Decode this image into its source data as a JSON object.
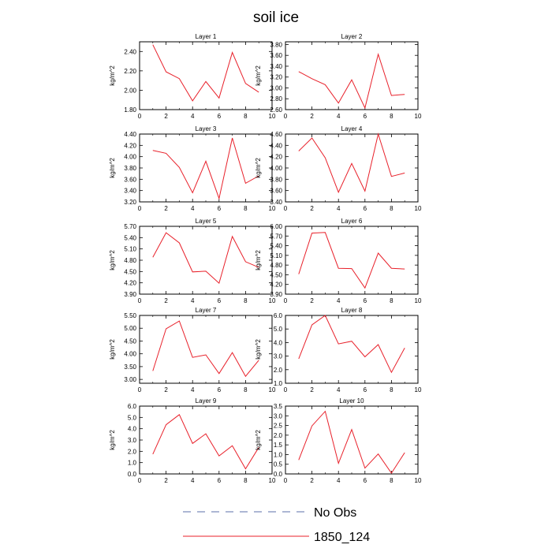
{
  "figure": {
    "title": "soil ice",
    "legend": {
      "position": "bottom-center",
      "entries": [
        {
          "label": "No Obs",
          "style": "dashed",
          "color": "#5b6fa8"
        },
        {
          "label": "1850_124",
          "style": "solid",
          "color": "#e8202a"
        }
      ]
    }
  },
  "chart_data": [
    {
      "type": "line",
      "title": "Layer 1",
      "ylabel": "kg/m^2",
      "xlim": [
        0,
        10
      ],
      "xticks": [
        0,
        2,
        4,
        6,
        8,
        10
      ],
      "ylim": [
        1.8,
        2.5
      ],
      "yticks": [
        "1.80",
        "2.00",
        "2.20",
        "2.40"
      ],
      "series": [
        {
          "name": "1850_124",
          "color": "#e8202a",
          "x": [
            1,
            2,
            3,
            4,
            5,
            6,
            7,
            8,
            9
          ],
          "y": [
            2.47,
            2.19,
            2.12,
            1.89,
            2.09,
            1.92,
            2.39,
            2.07,
            1.98
          ]
        }
      ]
    },
    {
      "type": "line",
      "title": "Layer 2",
      "ylabel": "kg/m^2",
      "xlim": [
        0,
        10
      ],
      "xticks": [
        0,
        2,
        4,
        6,
        8,
        10
      ],
      "ylim": [
        2.6,
        3.85
      ],
      "yticks": [
        "2.60",
        "2.80",
        "3.00",
        "3.20",
        "3.40",
        "3.60",
        "3.80"
      ],
      "series": [
        {
          "name": "1850_124",
          "color": "#e8202a",
          "x": [
            1,
            2,
            3,
            4,
            5,
            6,
            7,
            8,
            9
          ],
          "y": [
            3.3,
            3.17,
            3.06,
            2.72,
            3.15,
            2.63,
            3.62,
            2.86,
            2.88
          ]
        }
      ]
    },
    {
      "type": "line",
      "title": "Layer 3",
      "ylabel": "kg/m^2",
      "xlim": [
        0,
        10
      ],
      "xticks": [
        0,
        2,
        4,
        6,
        8,
        10
      ],
      "ylim": [
        3.2,
        4.4
      ],
      "yticks": [
        "3.20",
        "3.40",
        "3.60",
        "3.80",
        "4.00",
        "4.20",
        "4.40"
      ],
      "series": [
        {
          "name": "1850_124",
          "color": "#e8202a",
          "x": [
            1,
            2,
            3,
            4,
            5,
            6,
            7,
            8,
            9
          ],
          "y": [
            4.11,
            4.06,
            3.81,
            3.36,
            3.92,
            3.26,
            4.33,
            3.53,
            3.66
          ]
        }
      ]
    },
    {
      "type": "line",
      "title": "Layer 4",
      "ylabel": "kg/m^2",
      "xlim": [
        0,
        10
      ],
      "xticks": [
        0,
        2,
        4,
        6,
        8,
        10
      ],
      "ylim": [
        3.4,
        4.6
      ],
      "yticks": [
        "3.40",
        "3.60",
        "3.80",
        "4.00",
        "4.20",
        "4.40",
        "4.60"
      ],
      "series": [
        {
          "name": "1850_124",
          "color": "#e8202a",
          "x": [
            1,
            2,
            3,
            4,
            5,
            6,
            7,
            8,
            9
          ],
          "y": [
            4.3,
            4.53,
            4.18,
            3.57,
            4.08,
            3.59,
            4.6,
            3.85,
            3.91
          ]
        }
      ]
    },
    {
      "type": "line",
      "title": "Layer 5",
      "ylabel": "kg/m^2",
      "xlim": [
        0,
        10
      ],
      "xticks": [
        0,
        2,
        4,
        6,
        8,
        10
      ],
      "ylim": [
        3.9,
        5.7
      ],
      "yticks": [
        "3.90",
        "4.20",
        "4.50",
        "4.80",
        "5.10",
        "5.40",
        "5.70"
      ],
      "series": [
        {
          "name": "1850_124",
          "color": "#e8202a",
          "x": [
            1,
            2,
            3,
            4,
            5,
            6,
            7,
            8,
            9
          ],
          "y": [
            4.88,
            5.53,
            5.26,
            4.49,
            4.51,
            4.19,
            5.43,
            4.76,
            4.61
          ]
        }
      ]
    },
    {
      "type": "line",
      "title": "Layer 6",
      "ylabel": "kg/m^2",
      "xlim": [
        0,
        10
      ],
      "xticks": [
        0,
        2,
        4,
        6,
        8,
        10
      ],
      "ylim": [
        3.9,
        6.0
      ],
      "yticks": [
        "3.90",
        "4.20",
        "4.50",
        "4.80",
        "5.10",
        "5.40",
        "5.70",
        "6.00"
      ],
      "series": [
        {
          "name": "1850_124",
          "color": "#e8202a",
          "x": [
            1,
            2,
            3,
            4,
            5,
            6,
            7,
            8,
            9
          ],
          "y": [
            4.52,
            5.79,
            5.81,
            4.7,
            4.69,
            4.09,
            5.17,
            4.7,
            4.68
          ]
        }
      ]
    },
    {
      "type": "line",
      "title": "Layer 7",
      "ylabel": "kg/m^2",
      "xlim": [
        0,
        10
      ],
      "xticks": [
        0,
        2,
        4,
        6,
        8,
        10
      ],
      "ylim": [
        2.85,
        5.5
      ],
      "yticks": [
        "3.00",
        "3.50",
        "4.00",
        "4.50",
        "5.00",
        "5.50"
      ],
      "series": [
        {
          "name": "1850_124",
          "color": "#e8202a",
          "x": [
            1,
            2,
            3,
            4,
            5,
            6,
            7,
            8,
            9
          ],
          "y": [
            3.33,
            4.98,
            5.28,
            3.86,
            3.96,
            3.23,
            4.05,
            3.12,
            3.75
          ]
        }
      ]
    },
    {
      "type": "line",
      "title": "Layer 8",
      "ylabel": "kg/m^2",
      "xlim": [
        0,
        10
      ],
      "xticks": [
        0,
        2,
        4,
        6,
        8,
        10
      ],
      "ylim": [
        1.0,
        6.0
      ],
      "yticks": [
        "1.0",
        "2.0",
        "3.0",
        "4.0",
        "5.0",
        "6.0"
      ],
      "series": [
        {
          "name": "1850_124",
          "color": "#e8202a",
          "x": [
            1,
            2,
            3,
            4,
            5,
            6,
            7,
            8,
            9
          ],
          "y": [
            2.8,
            5.3,
            6.0,
            3.9,
            4.1,
            2.95,
            3.85,
            1.8,
            3.6
          ]
        }
      ]
    },
    {
      "type": "line",
      "title": "Layer 9",
      "ylabel": "kg/m^2",
      "xlim": [
        0,
        10
      ],
      "xticks": [
        0,
        2,
        4,
        6,
        8,
        10
      ],
      "ylim": [
        0.0,
        6.0
      ],
      "yticks": [
        "0.0",
        "1.0",
        "2.0",
        "3.0",
        "4.0",
        "5.0",
        "6.0"
      ],
      "series": [
        {
          "name": "1850_124",
          "color": "#e8202a",
          "x": [
            1,
            2,
            3,
            4,
            5,
            6,
            7,
            8,
            9
          ],
          "y": [
            1.75,
            4.35,
            5.25,
            2.7,
            3.55,
            1.6,
            2.5,
            0.45,
            2.35
          ]
        }
      ]
    },
    {
      "type": "line",
      "title": "Layer 10",
      "ylabel": "kg/m^2",
      "xlim": [
        0,
        10
      ],
      "xticks": [
        0,
        2,
        4,
        6,
        8,
        10
      ],
      "ylim": [
        0.0,
        3.5
      ],
      "yticks": [
        "0.0",
        "0.5",
        "1.0",
        "1.5",
        "2.0",
        "2.5",
        "3.0",
        "3.5"
      ],
      "series": [
        {
          "name": "1850_124",
          "color": "#e8202a",
          "x": [
            1,
            2,
            3,
            4,
            5,
            6,
            7,
            8,
            9
          ],
          "y": [
            0.72,
            2.48,
            3.23,
            0.55,
            2.29,
            0.3,
            1.03,
            0.04,
            1.1
          ]
        }
      ]
    }
  ]
}
